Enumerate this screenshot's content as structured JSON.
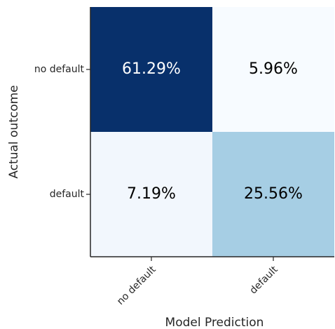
{
  "chart_data": {
    "type": "heatmap",
    "xlabel": "Model Prediction",
    "ylabel": "Actual outcome",
    "x_categories": [
      "no default",
      "default"
    ],
    "y_categories": [
      "no default",
      "default"
    ],
    "values": [
      [
        61.29,
        5.96
      ],
      [
        7.19,
        25.56
      ]
    ],
    "value_labels": [
      [
        "61.29%",
        "5.96%"
      ],
      [
        "7.19%",
        "25.56%"
      ]
    ],
    "colors": [
      [
        "#08306b",
        "#f7fbff"
      ],
      [
        "#f2f7fd",
        "#a6cee4"
      ]
    ]
  }
}
